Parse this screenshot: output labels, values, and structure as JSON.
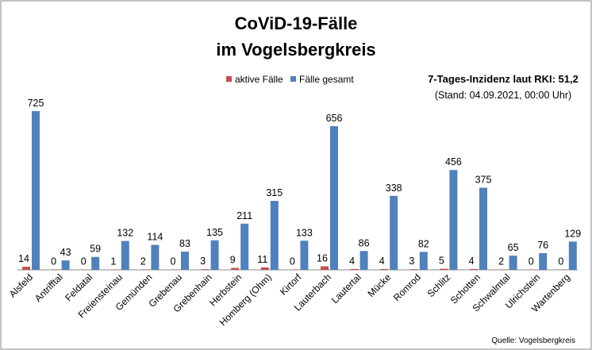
{
  "chart_data": {
    "type": "bar",
    "title": [
      "CoViD-19-Fälle",
      "im Vogelsbergkreis"
    ],
    "categories": [
      "Alsfeld",
      "Antrifftal",
      "Feldatal",
      "Freiensteinau",
      "Gemünden",
      "Grebenau",
      "Grebenhain",
      "Herbstein",
      "Homberg (Ohm)",
      "Kirtorf",
      "Lauterbach",
      "Lautertal",
      "Mücke",
      "Romrod",
      "Schlitz",
      "Schotten",
      "Schwalmtal",
      "Ulrichstein",
      "Wartenberg"
    ],
    "series": [
      {
        "name": "aktive Fälle",
        "color": "#C0504D",
        "values": [
          14,
          0,
          0,
          1,
          2,
          0,
          3,
          9,
          11,
          0,
          16,
          4,
          4,
          3,
          5,
          4,
          2,
          0,
          0
        ]
      },
      {
        "name": "Fälle gesamt",
        "color": "#4F81BD",
        "values": [
          725,
          43,
          59,
          132,
          114,
          83,
          135,
          211,
          315,
          133,
          656,
          86,
          338,
          82,
          456,
          375,
          65,
          76,
          129
        ]
      }
    ],
    "ylim": [
      0,
      725
    ],
    "grid": false,
    "legend": "top-center",
    "annotation": {
      "line1": "7-Tages-Inzidenz laut RKI: 51,2",
      "line2": "(Stand: 04.09.2021, 00:00 Uhr)"
    },
    "source": "Quelle: Vogelsbergkreis"
  }
}
